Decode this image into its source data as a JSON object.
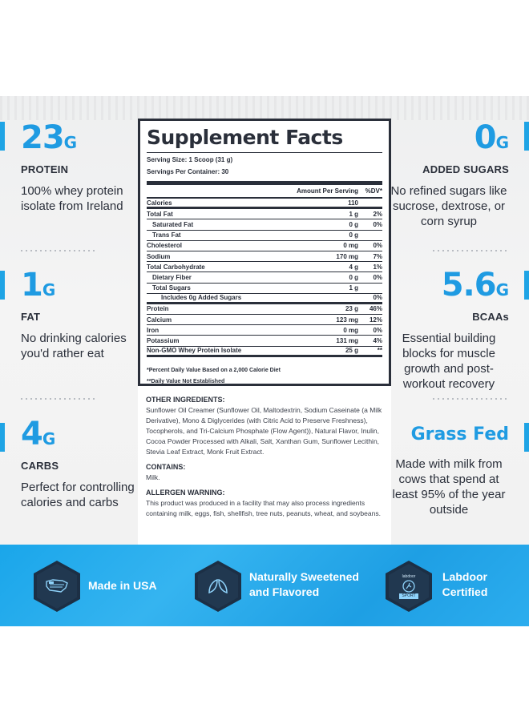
{
  "left": [
    {
      "big": "23",
      "unit": "G",
      "label": "PROTEIN",
      "desc": "100% whey protein isolate from Ireland"
    },
    {
      "big": "1",
      "unit": "G",
      "label": "FAT",
      "desc": "No drinking calories you'd rather eat"
    },
    {
      "big": "4",
      "unit": "G",
      "label": "CARBS",
      "desc": "Perfect for controlling calories and carbs"
    }
  ],
  "right": [
    {
      "big": "0",
      "unit": "G",
      "label": "ADDED SUGARS",
      "desc": "No refined sugars like sucrose, dextrose, or corn syrup"
    },
    {
      "big": "5.6",
      "unit": "G",
      "label": "BCAAs",
      "desc": "Essential building blocks for muscle growth and post-workout recovery"
    },
    {
      "big": "Grass Fed",
      "unit": "",
      "label": "",
      "desc": "Made with milk from cows that spend at least 95% of the year outside"
    }
  ],
  "facts": {
    "title": "Supplement Facts",
    "serving_size": "Serving Size: 1 Scoop (31 g)",
    "servings_per": "Servings Per Container: 30",
    "head_amount": "Amount Per Serving",
    "head_dv": "%DV*",
    "rows": [
      {
        "n": "Calories",
        "a": "110",
        "d": ""
      },
      {
        "n": "Total Fat",
        "a": "1 g",
        "d": "2%"
      },
      {
        "n": "Saturated Fat",
        "a": "0 g",
        "d": "0%"
      },
      {
        "n": "Trans Fat",
        "a": "0 g",
        "d": ""
      },
      {
        "n": "Cholesterol",
        "a": "0 mg",
        "d": "0%"
      },
      {
        "n": "Sodium",
        "a": "170 mg",
        "d": "7%"
      },
      {
        "n": "Total Carbohydrate",
        "a": "4 g",
        "d": "1%"
      },
      {
        "n": "Dietary Fiber",
        "a": "0 g",
        "d": "0%"
      },
      {
        "n": "Total Sugars",
        "a": "1 g",
        "d": ""
      },
      {
        "n": "Includes 0g Added Sugars",
        "a": "",
        "d": "0%"
      },
      {
        "n": "Protein",
        "a": "23 g",
        "d": "46%"
      },
      {
        "n": "Calcium",
        "a": "123 mg",
        "d": "12%"
      },
      {
        "n": "Iron",
        "a": "0 mg",
        "d": "0%"
      },
      {
        "n": "Potassium",
        "a": "131 mg",
        "d": "4%"
      },
      {
        "n": "Non-GMO Whey Protein Isolate",
        "a": "25 g",
        "d": "**"
      }
    ],
    "foot1": "*Percent Daily Value Based on a 2,000 Calorie Diet",
    "foot2": "**Daily Value Not Established"
  },
  "ingredients": {
    "other_h": "OTHER INGREDIENTS:",
    "other_t": "Sunflower Oil Creamer (Sunflower Oil, Maltodextrin, Sodium Caseinate (a Milk Derivative), Mono & Diglycerides (with Citric Acid to Preserve Freshness), Tocopherols, and Tri-Calcium Phosphate (Flow Agent)), Natural Flavor, Inulin, Cocoa Powder Processed with Alkali, Salt, Xanthan Gum, Sunflower Lecithin, Stevia Leaf Extract, Monk Fruit Extract.",
    "contains_h": "CONTAINS:",
    "contains_t": "Milk.",
    "allergen_h": "ALLERGEN WARNING:",
    "allergen_t": "This product was produced in a facility that may also process ingredients containing milk, eggs, fish, shellfish, tree nuts, peanuts, wheat, and soybeans."
  },
  "band": {
    "usa": "Made in USA",
    "sweet1": "Naturally Sweetened",
    "sweet2": "and Flavored",
    "lab1": "Labdoor",
    "lab2": "Certified",
    "lab_logo": "labdoor",
    "lab_badge": "SPORT"
  },
  "colors": {
    "accent": "#1f9be2",
    "dark": "#2a2f3a",
    "band": "#1aa6ea",
    "hex": "#1c2f45"
  }
}
